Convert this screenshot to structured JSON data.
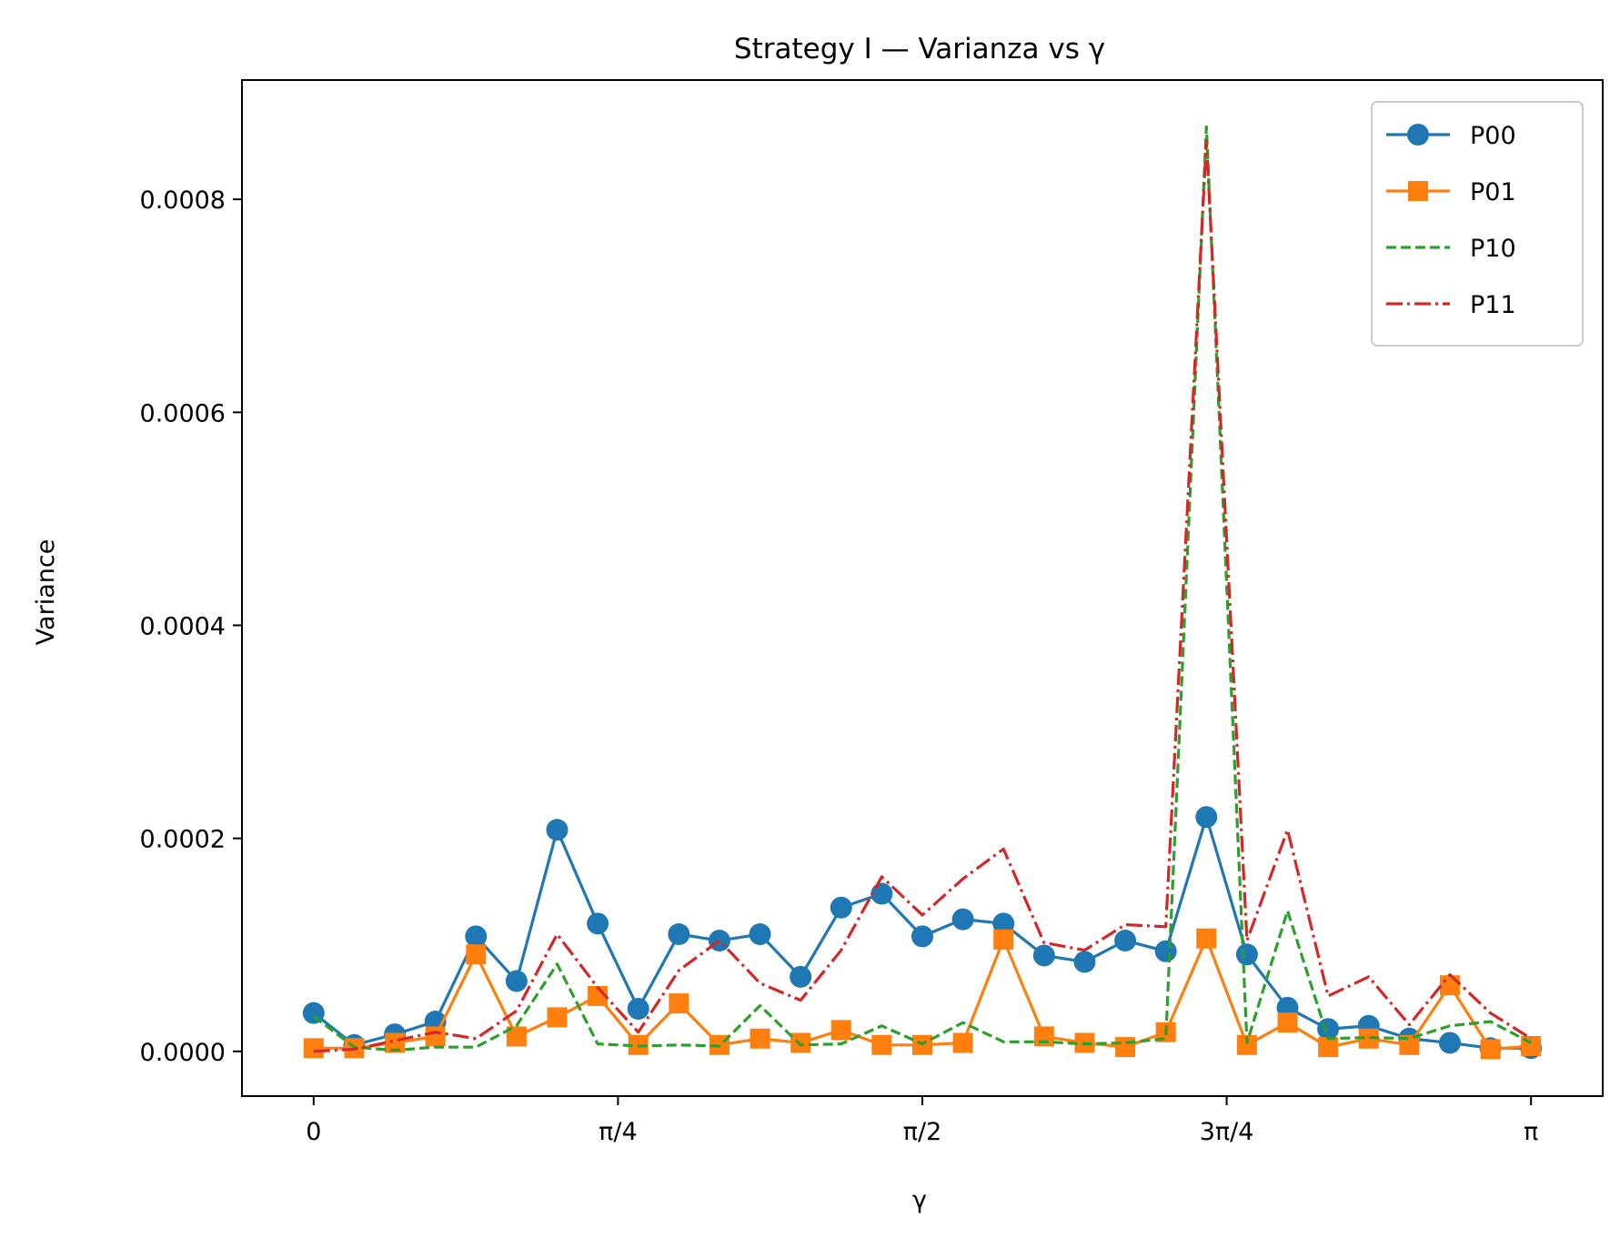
{
  "chart_data": {
    "type": "line",
    "title": "Strategy I — Varianza vs γ",
    "xlabel": "γ",
    "ylabel": "Variance",
    "xlim": [
      -0.185,
      3.3266
    ],
    "ylim": [
      -4.2e-05,
      0.000912
    ],
    "x_ticks": [
      {
        "value": 0,
        "label": "0"
      },
      {
        "value": 0.785398,
        "label": "π/4"
      },
      {
        "value": 1.570796,
        "label": "π/2"
      },
      {
        "value": 2.356194,
        "label": "3π/4"
      },
      {
        "value": 3.141593,
        "label": "π"
      }
    ],
    "y_ticks": [
      {
        "value": 0,
        "label": "0.0000"
      },
      {
        "value": 0.0002,
        "label": "0.0002"
      },
      {
        "value": 0.0004,
        "label": "0.0004"
      },
      {
        "value": 0.0006,
        "label": "0.0006"
      },
      {
        "value": 0.0008,
        "label": "0.0008"
      }
    ],
    "grid": false,
    "legend_position": "top-right",
    "x": [
      0,
      0.10472,
      0.20944,
      0.31416,
      0.41888,
      0.5236,
      0.62832,
      0.73304,
      0.83776,
      0.94248,
      1.0472,
      1.15192,
      1.25664,
      1.36136,
      1.46608,
      1.5708,
      1.67552,
      1.78024,
      1.88496,
      1.98968,
      2.0944,
      2.19912,
      2.30384,
      2.40856,
      2.51327,
      2.61799,
      2.72271,
      2.82743,
      2.93215,
      3.03687,
      3.14159
    ],
    "series": [
      {
        "name": "P00",
        "color": "#1f77b4",
        "style": "solid",
        "marker": "circle",
        "values": [
          3.6e-05,
          6e-06,
          1.6e-05,
          2.8e-05,
          0.000108,
          6.6e-05,
          0.000208,
          0.00012,
          4e-05,
          0.00011,
          0.000104,
          0.00011,
          7e-05,
          0.000135,
          0.000148,
          0.000108,
          0.000124,
          0.00012,
          9e-05,
          8.4e-05,
          0.000104,
          9.4e-05,
          0.00022,
          9.1e-05,
          4.1e-05,
          2.1e-05,
          2.4e-05,
          1.2e-05,
          8e-06,
          3e-06,
          3e-06
        ]
      },
      {
        "name": "P01",
        "color": "#ff7f0e",
        "style": "solid",
        "marker": "square",
        "values": [
          3e-06,
          3e-06,
          8e-06,
          1.4e-05,
          9.1e-05,
          1.4e-05,
          3.2e-05,
          5.2e-05,
          6e-06,
          4.5e-05,
          6e-06,
          1.2e-05,
          8e-06,
          2e-05,
          6e-06,
          6e-06,
          8e-06,
          0.000105,
          1.4e-05,
          8e-06,
          4e-06,
          1.8e-05,
          0.000106,
          6e-06,
          2.7e-05,
          4e-06,
          1.2e-05,
          6e-06,
          6.2e-05,
          2e-06,
          5e-06
        ]
      },
      {
        "name": "P10",
        "color": "#2ca02c",
        "style": "dashed",
        "marker": "none",
        "values": [
          3.3e-05,
          4e-06,
          1e-06,
          4e-06,
          4e-06,
          2.4e-05,
          8.2e-05,
          7e-06,
          5e-06,
          6e-06,
          5e-06,
          4.3e-05,
          6e-06,
          7e-06,
          2.4e-05,
          7e-06,
          2.7e-05,
          9e-06,
          9e-06,
          7e-06,
          8e-06,
          1.2e-05,
          0.000868,
          8e-06,
          0.000132,
          1.2e-05,
          1.3e-05,
          1.2e-05,
          2.4e-05,
          2.8e-05,
          8e-06
        ]
      },
      {
        "name": "P11",
        "color": "#d62728",
        "style": "dashdot",
        "marker": "none",
        "values": [
          0.0,
          2e-06,
          1e-05,
          1.8e-05,
          1.2e-05,
          3.8e-05,
          0.00011,
          6e-05,
          1.8e-05,
          7.6e-05,
          0.000104,
          6.4e-05,
          4.8e-05,
          9.5e-05,
          0.000164,
          0.000128,
          0.000162,
          0.00019,
          0.000102,
          9.5e-05,
          0.000119,
          0.000117,
          0.000855,
          0.000104,
          0.000208,
          5.2e-05,
          7e-05,
          2.5e-05,
          7.2e-05,
          3.6e-05,
          1.2e-05
        ]
      }
    ]
  }
}
